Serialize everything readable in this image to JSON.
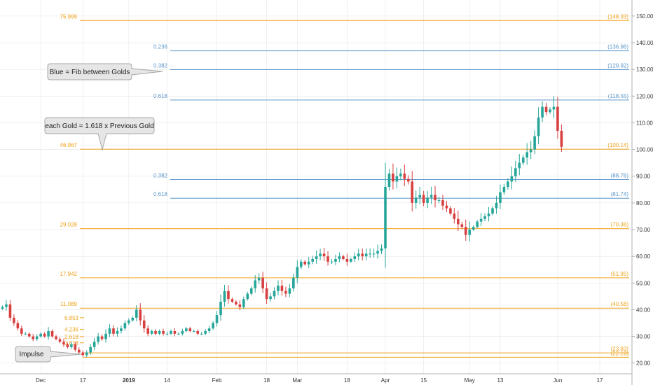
{
  "chart_data": {
    "type": "candlestick",
    "title": "",
    "xlabel": "",
    "ylabel": "",
    "ylim": [
      16,
      156
    ],
    "yticks": [
      "20.00",
      "30.00",
      "40.00",
      "50.00",
      "60.00",
      "70.00",
      "80.00",
      "90.00",
      "100.00",
      "110.00",
      "120.00",
      "130.00",
      "140.00",
      "150.00"
    ],
    "xticks": [
      {
        "label": "Dec",
        "bar": 10
      },
      {
        "label": "17",
        "bar": 21
      },
      {
        "label": "2019",
        "bar": 33
      },
      {
        "label": "14",
        "bar": 43
      },
      {
        "label": "Feb",
        "bar": 56
      },
      {
        "label": "18",
        "bar": 69
      },
      {
        "label": "Mar",
        "bar": 77
      },
      {
        "label": "18",
        "bar": 90
      },
      {
        "label": "Apr",
        "bar": 100
      },
      {
        "label": "15",
        "bar": 110
      },
      {
        "label": "May",
        "bar": 122
      },
      {
        "label": "13",
        "bar": 130
      },
      {
        "label": "Jun",
        "bar": 145
      },
      {
        "label": "17",
        "bar": 156
      }
    ],
    "gold_levels": [
      {
        "ratio": "75.999",
        "value": 148.33,
        "right_label": "(148.33)"
      },
      {
        "ratio": "46.967",
        "value": 100.14,
        "right_label": "(100.14)"
      },
      {
        "ratio": "29.028",
        "value": 70.36,
        "right_label": "(70.36)"
      },
      {
        "ratio": "17.942",
        "value": 51.95,
        "right_label": "(51.95)"
      },
      {
        "ratio": "11.089",
        "value": 40.58,
        "right_label": "(40.58)"
      },
      {
        "ratio": "",
        "value": 23.83,
        "right_label": "(23.83)"
      },
      {
        "ratio": "",
        "value": 22.19,
        "right_label": "(22.19)"
      }
    ],
    "blue_levels": [
      {
        "ratio": "0.236",
        "value": 136.96,
        "right_label": "(136.96)"
      },
      {
        "ratio": "0.382",
        "value": 129.92,
        "right_label": "(129.92)"
      },
      {
        "ratio": "0.618",
        "value": 118.55,
        "right_label": "(118.55)"
      },
      {
        "ratio": "0.382",
        "value": 88.76,
        "right_label": "(88.76)"
      },
      {
        "ratio": "0.618",
        "value": 81.74,
        "right_label": "(81.74)"
      }
    ],
    "impulse_levels": [
      {
        "ratio": "6.853",
        "value": 37.0
      },
      {
        "ratio": "4.236",
        "value": 32.6
      },
      {
        "ratio": "2.618",
        "value": 29.9
      },
      {
        "ratio": "1.618",
        "value": 27.6
      }
    ],
    "closes": [
      41,
      42,
      37,
      35,
      33,
      31,
      31,
      30,
      29,
      30,
      31,
      30,
      32,
      30,
      29,
      28,
      27,
      26,
      27,
      25,
      24,
      23,
      24,
      26,
      28,
      30,
      29,
      31,
      33,
      31,
      32,
      33,
      35,
      36,
      37,
      40,
      36,
      33,
      31,
      32,
      31,
      32,
      31,
      31,
      32,
      31,
      31,
      32,
      33,
      32,
      32,
      31,
      31,
      32,
      33,
      35,
      38,
      43,
      47,
      44,
      43,
      42,
      41,
      44,
      46,
      48,
      51,
      52,
      48,
      44,
      45,
      47,
      49,
      47,
      46,
      48,
      52,
      56,
      58,
      57,
      58,
      59,
      60,
      61,
      60,
      58,
      58,
      59,
      60,
      59,
      58,
      59,
      60,
      61,
      60,
      61,
      61,
      61,
      62,
      63,
      86,
      91,
      88,
      90,
      91,
      89,
      88,
      80,
      82,
      83,
      80,
      82,
      83,
      81,
      81,
      79,
      78,
      76,
      74,
      72,
      71,
      68,
      70,
      71,
      73,
      74,
      75,
      76,
      78,
      80,
      84,
      86,
      88,
      90,
      93,
      95,
      97,
      99,
      100,
      105,
      112,
      116,
      114,
      115,
      116,
      107,
      101
    ]
  },
  "colors": {
    "gold": "#f0a31e",
    "blue": "#5e98cc",
    "up": "#26a69a",
    "down": "#d84040",
    "grid": "#e6e6e6",
    "axis_text": "#333333"
  },
  "callouts": {
    "blue_fib": "Blue = Fib between Golds",
    "each_gold": "each Gold = 1.618 x Previous Gold",
    "impulse": "Impulse"
  }
}
